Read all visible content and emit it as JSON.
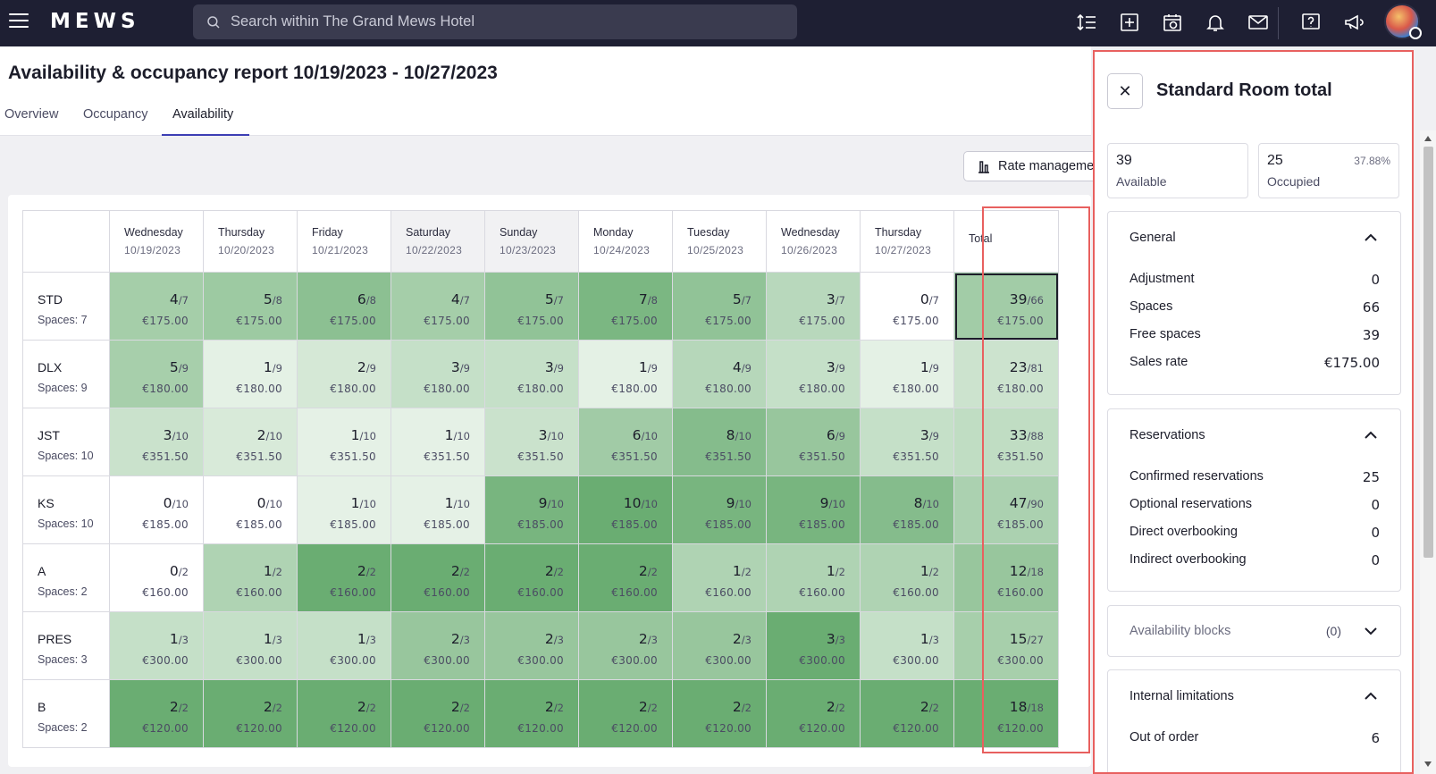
{
  "app": {
    "logo": "MEWS",
    "search_placeholder": "Search within The Grand Mews Hotel"
  },
  "page": {
    "title": "Availability & occupancy report 10/19/2023 - 10/27/2023",
    "tabs": [
      {
        "label": "Overview",
        "active": false
      },
      {
        "label": "Occupancy",
        "active": false
      },
      {
        "label": "Availability",
        "active": true
      }
    ],
    "rate_button_label": "Rate manageme"
  },
  "grid": {
    "days": [
      {
        "name": "Wednesday",
        "date": "10/19/2023",
        "weekend": false
      },
      {
        "name": "Thursday",
        "date": "10/20/2023",
        "weekend": false
      },
      {
        "name": "Friday",
        "date": "10/21/2023",
        "weekend": false
      },
      {
        "name": "Saturday",
        "date": "10/22/2023",
        "weekend": true
      },
      {
        "name": "Sunday",
        "date": "10/23/2023",
        "weekend": true
      },
      {
        "name": "Monday",
        "date": "10/24/2023",
        "weekend": false
      },
      {
        "name": "Tuesday",
        "date": "10/25/2023",
        "weekend": false
      },
      {
        "name": "Wednesday",
        "date": "10/26/2023",
        "weekend": false
      },
      {
        "name": "Thursday",
        "date": "10/27/2023",
        "weekend": false
      }
    ],
    "total_label": "Total",
    "rows": [
      {
        "code": "STD",
        "spaces": "Spaces: 7",
        "cells": [
          [
            "4",
            "/7",
            "€175.00"
          ],
          [
            "5",
            "/8",
            "€175.00"
          ],
          [
            "6",
            "/8",
            "€175.00"
          ],
          [
            "4",
            "/7",
            "€175.00"
          ],
          [
            "5",
            "/7",
            "€175.00"
          ],
          [
            "7",
            "/8",
            "€175.00"
          ],
          [
            "5",
            "/7",
            "€175.00"
          ],
          [
            "3",
            "/7",
            "€175.00"
          ],
          [
            "0",
            "/7",
            "€175.00"
          ]
        ],
        "total": [
          "39",
          "/66",
          "€175.00"
        ]
      },
      {
        "code": "DLX",
        "spaces": "Spaces: 9",
        "cells": [
          [
            "5",
            "/9",
            "€180.00"
          ],
          [
            "1",
            "/9",
            "€180.00"
          ],
          [
            "2",
            "/9",
            "€180.00"
          ],
          [
            "3",
            "/9",
            "€180.00"
          ],
          [
            "3",
            "/9",
            "€180.00"
          ],
          [
            "1",
            "/9",
            "€180.00"
          ],
          [
            "4",
            "/9",
            "€180.00"
          ],
          [
            "3",
            "/9",
            "€180.00"
          ],
          [
            "1",
            "/9",
            "€180.00"
          ]
        ],
        "total": [
          "23",
          "/81",
          "€180.00"
        ]
      },
      {
        "code": "JST",
        "spaces": "Spaces: 10",
        "cells": [
          [
            "3",
            "/10",
            "€351.50"
          ],
          [
            "2",
            "/10",
            "€351.50"
          ],
          [
            "1",
            "/10",
            "€351.50"
          ],
          [
            "1",
            "/10",
            "€351.50"
          ],
          [
            "3",
            "/10",
            "€351.50"
          ],
          [
            "6",
            "/10",
            "€351.50"
          ],
          [
            "8",
            "/10",
            "€351.50"
          ],
          [
            "6",
            "/9",
            "€351.50"
          ],
          [
            "3",
            "/9",
            "€351.50"
          ]
        ],
        "total": [
          "33",
          "/88",
          "€351.50"
        ]
      },
      {
        "code": "KS",
        "spaces": "Spaces: 10",
        "cells": [
          [
            "0",
            "/10",
            "€185.00"
          ],
          [
            "0",
            "/10",
            "€185.00"
          ],
          [
            "1",
            "/10",
            "€185.00"
          ],
          [
            "1",
            "/10",
            "€185.00"
          ],
          [
            "9",
            "/10",
            "€185.00"
          ],
          [
            "10",
            "/10",
            "€185.00"
          ],
          [
            "9",
            "/10",
            "€185.00"
          ],
          [
            "9",
            "/10",
            "€185.00"
          ],
          [
            "8",
            "/10",
            "€185.00"
          ]
        ],
        "total": [
          "47",
          "/90",
          "€185.00"
        ]
      },
      {
        "code": "A",
        "spaces": "Spaces: 2",
        "cells": [
          [
            "0",
            "/2",
            "€160.00"
          ],
          [
            "1",
            "/2",
            "€160.00"
          ],
          [
            "2",
            "/2",
            "€160.00"
          ],
          [
            "2",
            "/2",
            "€160.00"
          ],
          [
            "2",
            "/2",
            "€160.00"
          ],
          [
            "2",
            "/2",
            "€160.00"
          ],
          [
            "1",
            "/2",
            "€160.00"
          ],
          [
            "1",
            "/2",
            "€160.00"
          ],
          [
            "1",
            "/2",
            "€160.00"
          ]
        ],
        "total": [
          "12",
          "/18",
          "€160.00"
        ]
      },
      {
        "code": "PRES",
        "spaces": "Spaces: 3",
        "cells": [
          [
            "1",
            "/3",
            "€300.00"
          ],
          [
            "1",
            "/3",
            "€300.00"
          ],
          [
            "1",
            "/3",
            "€300.00"
          ],
          [
            "2",
            "/3",
            "€300.00"
          ],
          [
            "2",
            "/3",
            "€300.00"
          ],
          [
            "2",
            "/3",
            "€300.00"
          ],
          [
            "2",
            "/3",
            "€300.00"
          ],
          [
            "3",
            "/3",
            "€300.00"
          ],
          [
            "1",
            "/3",
            "€300.00"
          ]
        ],
        "total": [
          "15",
          "/27",
          "€300.00"
        ]
      },
      {
        "code": "B",
        "spaces": "Spaces: 2",
        "cells": [
          [
            "2",
            "/2",
            "€120.00"
          ],
          [
            "2",
            "/2",
            "€120.00"
          ],
          [
            "2",
            "/2",
            "€120.00"
          ],
          [
            "2",
            "/2",
            "€120.00"
          ],
          [
            "2",
            "/2",
            "€120.00"
          ],
          [
            "2",
            "/2",
            "€120.00"
          ],
          [
            "2",
            "/2",
            "€120.00"
          ],
          [
            "2",
            "/2",
            "€120.00"
          ],
          [
            "2",
            "/2",
            "€120.00"
          ]
        ],
        "total": [
          "18",
          "/18",
          "€120.00"
        ]
      }
    ]
  },
  "panel": {
    "title": "Standard Room total",
    "available_value": "39",
    "available_label": "Available",
    "occupied_value": "25",
    "occupied_label": "Occupied",
    "occupied_pct": "37.88%",
    "general": {
      "title": "General",
      "items": [
        {
          "label": "Adjustment",
          "value": "0"
        },
        {
          "label": "Spaces",
          "value": "66"
        },
        {
          "label": "Free spaces",
          "value": "39"
        },
        {
          "label": "Sales rate",
          "value": "€175.00"
        }
      ]
    },
    "reservations": {
      "title": "Reservations",
      "items": [
        {
          "label": "Confirmed reservations",
          "value": "25"
        },
        {
          "label": "Optional reservations",
          "value": "0"
        },
        {
          "label": "Direct overbooking",
          "value": "0"
        },
        {
          "label": "Indirect overbooking",
          "value": "0"
        }
      ]
    },
    "availability_blocks": {
      "title": "Availability blocks",
      "count": "(0)"
    },
    "internal_limitations": {
      "title": "Internal limitations",
      "items": [
        {
          "label": "Out of order",
          "value": "6"
        }
      ]
    }
  },
  "colors": {
    "topbar": "#1e1f33",
    "accent": "#3d3fb4",
    "highlight_border": "#e8605f",
    "green_darkest": "#6aad72",
    "green_lightest": "#f3f9f3"
  }
}
